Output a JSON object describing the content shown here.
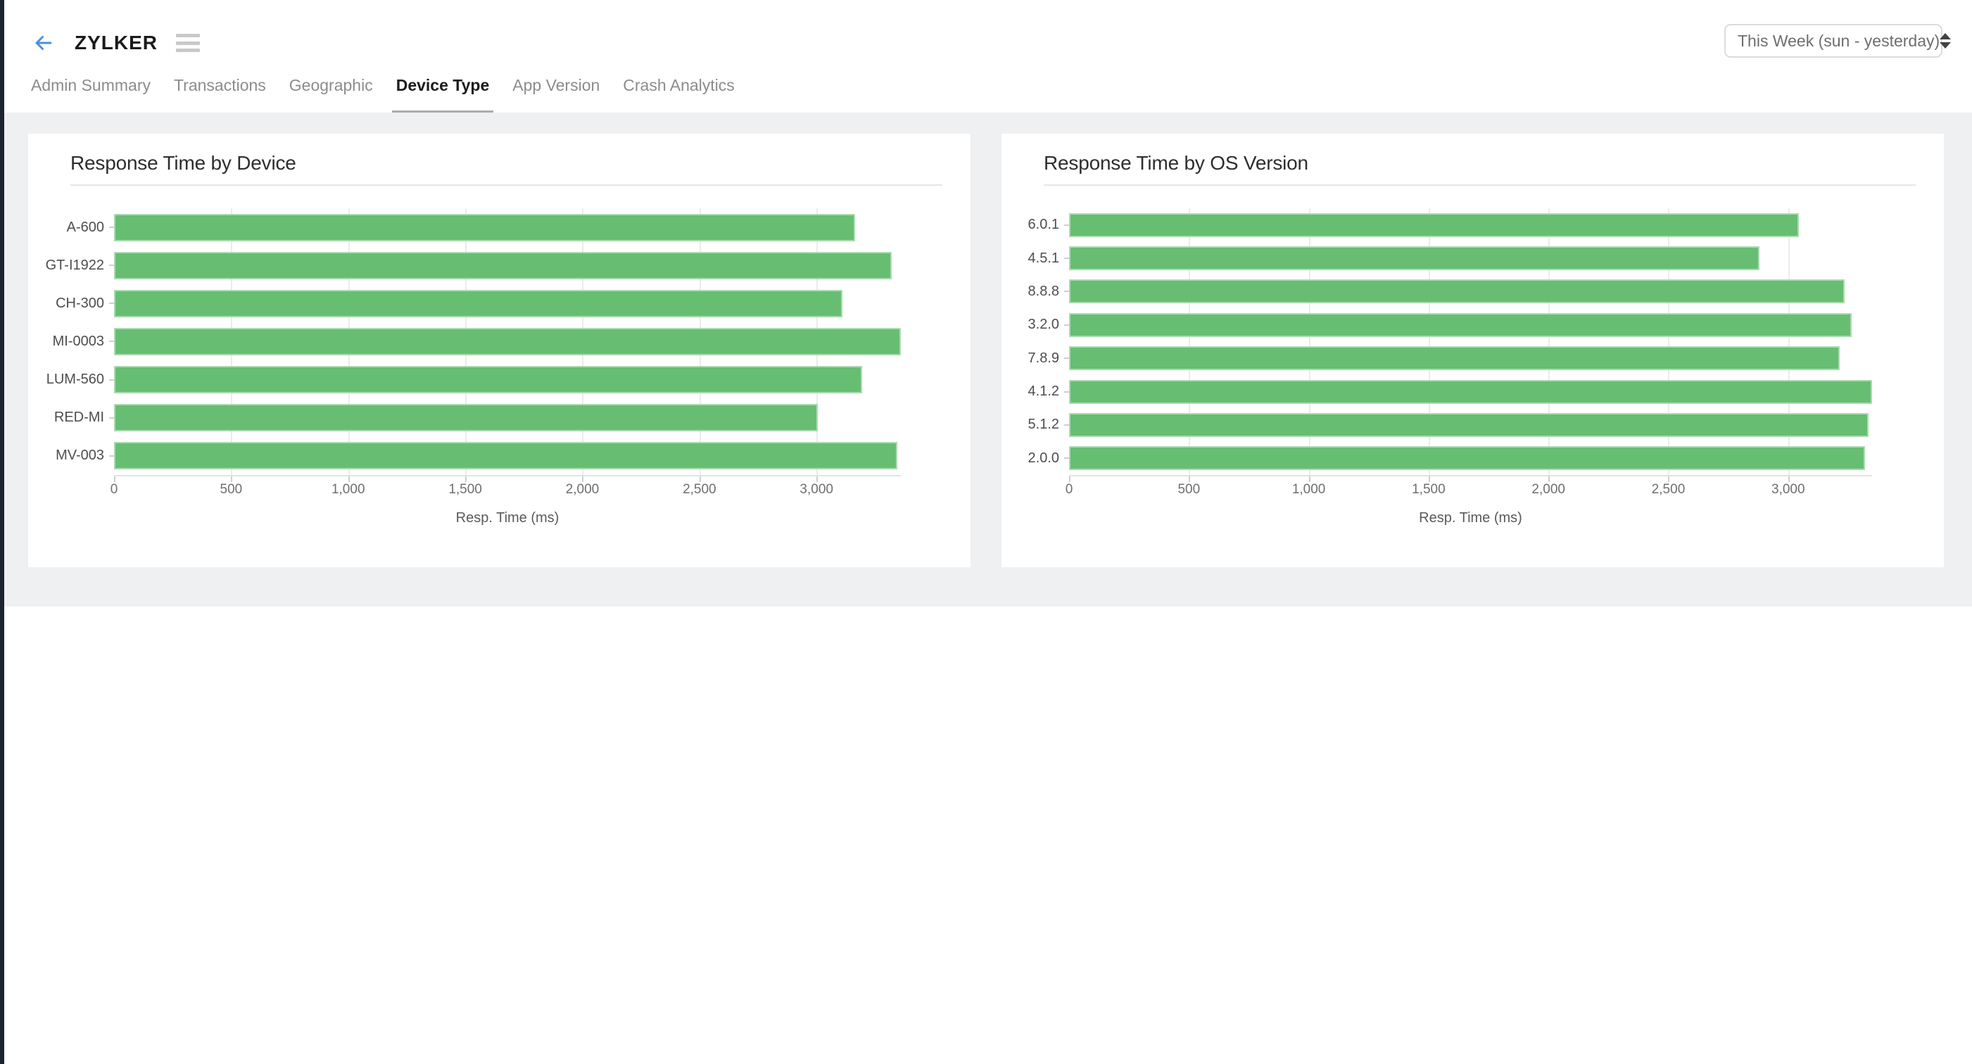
{
  "header": {
    "title": "ZYLKER",
    "back_icon": "arrow-left",
    "menu_icon": "hamburger"
  },
  "period_select": {
    "value": "This Week (sun - yesterday)"
  },
  "tabs": [
    {
      "label": "Admin Summary",
      "active": false
    },
    {
      "label": "Transactions",
      "active": false
    },
    {
      "label": "Geographic",
      "active": false
    },
    {
      "label": "Device Type",
      "active": true
    },
    {
      "label": "App Version",
      "active": false
    },
    {
      "label": "Crash Analytics",
      "active": false
    }
  ],
  "colors": {
    "bar_green": "#67be72",
    "accent_blue": "#4d8fd6",
    "page_background": "#eef0f1",
    "active_tab_underline": "#ababab",
    "left_edge": "#1b2430"
  },
  "chart_data": [
    {
      "type": "bar",
      "orientation": "horizontal",
      "title": "Response Time by Device",
      "xlabel": "Resp. Time (ms)",
      "categories": [
        "A-600",
        "GT-I1922",
        "CH-300",
        "MI-0003",
        "LUM-560",
        "RED-MI",
        "MV-003"
      ],
      "values": [
        3165,
        3320,
        3110,
        3360,
        3195,
        3005,
        3345
      ],
      "xlim": [
        0,
        3360
      ],
      "xticks": [
        0,
        500,
        1000,
        1500,
        2000,
        2500,
        3000
      ],
      "xtick_labels": [
        "0",
        "500",
        "1,000",
        "1,500",
        "2,000",
        "2,500",
        "3,000"
      ],
      "grid": true,
      "legend": "none",
      "bar_color": "#67be72"
    },
    {
      "type": "bar",
      "orientation": "horizontal",
      "title": "Response Time by OS Version",
      "xlabel": "Resp. Time (ms)",
      "categories": [
        "6.0.1",
        "4.5.1",
        "8.8.8",
        "3.2.0",
        "7.8.9",
        "4.1.2",
        "5.1.2",
        "2.0.0"
      ],
      "values": [
        3045,
        2880,
        3235,
        3265,
        3215,
        3350,
        3335,
        3320
      ],
      "xlim": [
        0,
        3350
      ],
      "xticks": [
        0,
        500,
        1000,
        1500,
        2000,
        2500,
        3000
      ],
      "xtick_labels": [
        "0",
        "500",
        "1,000",
        "1,500",
        "2,000",
        "2,500",
        "3,000"
      ],
      "grid": true,
      "legend": "none",
      "bar_color": "#67be72"
    }
  ]
}
